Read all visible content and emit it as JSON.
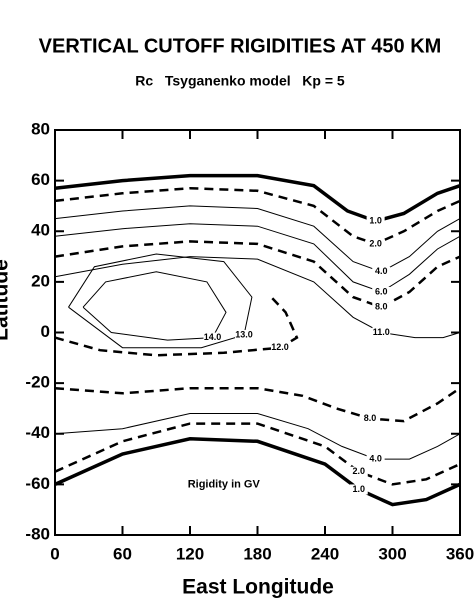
{
  "chart_data": {
    "type": "contour",
    "title": "VERTICAL CUTOFF RIGIDITIES AT 450 KM",
    "subtitle": "Rc   Tsyganenko model   Kp = 5",
    "x_label": "East Longitude",
    "y_label": "Latitude",
    "annotation": "Rigidity in GV",
    "xlim": [
      0,
      360
    ],
    "ylim": [
      -80,
      80
    ],
    "xticks": [
      0,
      60,
      120,
      180,
      240,
      300,
      360
    ],
    "yticks": [
      80,
      60,
      40,
      20,
      0,
      -20,
      -40,
      -60,
      -80
    ],
    "color": "#000000",
    "contours": [
      {
        "label": "1.0",
        "thick": true,
        "dashed": false,
        "x": [
          0,
          60,
          120,
          180,
          230,
          260,
          285,
          310,
          340,
          360
        ],
        "y": [
          57,
          60,
          62,
          62,
          58,
          48,
          44,
          47,
          55,
          58
        ]
      },
      {
        "label": "2.0",
        "thick": false,
        "dashed": true,
        "x": [
          0,
          60,
          120,
          180,
          230,
          265,
          285,
          310,
          340,
          360
        ],
        "y": [
          52,
          55,
          57,
          56,
          50,
          38,
          35,
          40,
          48,
          52
        ]
      },
      {
        "label": "4.0",
        "thick": false,
        "dashed": false,
        "x": [
          0,
          60,
          120,
          180,
          230,
          265,
          290,
          315,
          340,
          360
        ],
        "y": [
          45,
          48,
          50,
          49,
          42,
          28,
          24,
          30,
          40,
          45
        ]
      },
      {
        "label": "6.0",
        "thick": false,
        "dashed": false,
        "x": [
          0,
          60,
          120,
          180,
          230,
          265,
          290,
          315,
          340,
          360
        ],
        "y": [
          38,
          41,
          43,
          42,
          35,
          20,
          16,
          23,
          33,
          38
        ]
      },
      {
        "label": "8.0",
        "thick": false,
        "dashed": true,
        "x": [
          0,
          60,
          120,
          180,
          230,
          265,
          290,
          315,
          340,
          360
        ],
        "y": [
          30,
          34,
          36,
          35,
          28,
          14,
          10,
          16,
          26,
          30
        ]
      },
      {
        "label": "11.0",
        "thick": false,
        "dashed": false,
        "x": [
          0,
          60,
          120,
          180,
          230,
          265,
          290,
          320,
          345,
          360
        ],
        "y": [
          22,
          27,
          30,
          29,
          20,
          6,
          0,
          -2,
          -2,
          0
        ]
      },
      {
        "label": "14.0",
        "thick": false,
        "dashed": false,
        "x": [
          25,
          45,
          90,
          135,
          152,
          140,
          100,
          50,
          25
        ],
        "y": [
          10,
          20,
          24,
          20,
          8,
          -2,
          -3,
          0,
          10
        ]
      },
      {
        "label": "13.0",
        "thick": false,
        "dashed": false,
        "x": [
          12,
          35,
          90,
          150,
          175,
          168,
          130,
          60,
          12
        ],
        "y": [
          10,
          26,
          31,
          28,
          14,
          -1,
          -6,
          -6,
          10
        ]
      },
      {
        "label": "12.0",
        "thick": false,
        "dashed": true,
        "x": [
          0,
          40,
          90,
          150,
          200,
          215,
          205,
          190
        ],
        "y": [
          -2,
          -7,
          -9,
          -8,
          -6,
          -2,
          8,
          15
        ]
      },
      {
        "label": "8.0",
        "thick": false,
        "dashed": true,
        "x": [
          0,
          60,
          120,
          180,
          220,
          250,
          280,
          310,
          340,
          360
        ],
        "y": [
          -22,
          -24,
          -22,
          -22,
          -25,
          -30,
          -34,
          -35,
          -28,
          -22
        ]
      },
      {
        "label": "4.0",
        "thick": false,
        "dashed": false,
        "x": [
          0,
          60,
          120,
          180,
          225,
          255,
          285,
          315,
          340,
          360
        ],
        "y": [
          -40,
          -38,
          -32,
          -32,
          -38,
          -45,
          -50,
          -50,
          -45,
          -40
        ]
      },
      {
        "label": "2.0",
        "thick": false,
        "dashed": true,
        "x": [
          0,
          60,
          120,
          180,
          240,
          270,
          300,
          330,
          360
        ],
        "y": [
          -55,
          -43,
          -36,
          -36,
          -45,
          -55,
          -60,
          -58,
          -52
        ]
      },
      {
        "label": "1.0",
        "thick": true,
        "dashed": false,
        "x": [
          0,
          60,
          120,
          180,
          240,
          270,
          300,
          330,
          360
        ],
        "y": [
          -60,
          -48,
          -42,
          -43,
          -52,
          -62,
          -68,
          -66,
          -60
        ]
      }
    ]
  }
}
